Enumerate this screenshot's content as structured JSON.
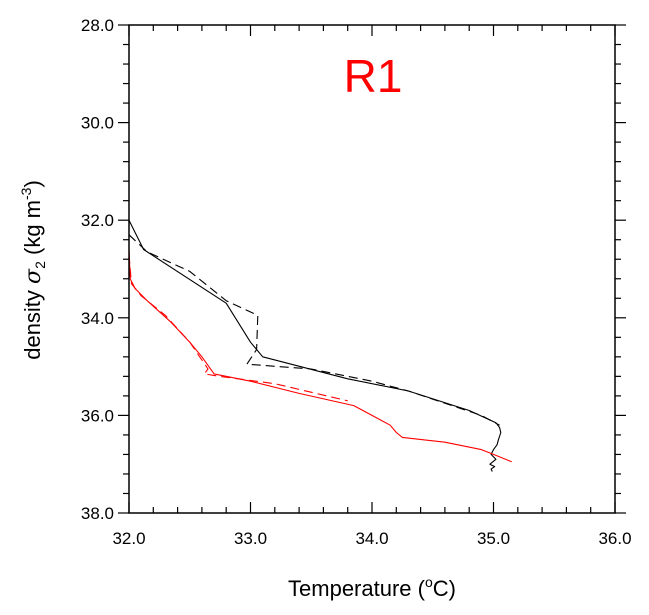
{
  "chart_data": {
    "type": "line",
    "panel_label": "R1",
    "panel_label_color": "#ff0000",
    "xlabel": {
      "prefix": "Temperature (",
      "sup": "o",
      "suffix": "C)"
    },
    "ylabel": {
      "prefix": "density ",
      "sigma": "σ",
      "sub": "2",
      "unit_open": " (kg m",
      "sup": "-3",
      "unit_close": ")"
    },
    "xlim": [
      32.0,
      36.0
    ],
    "ylim": [
      38.0,
      28.0
    ],
    "y_inverted": true,
    "x_ticks": [
      "32.0",
      "33.0",
      "34.0",
      "35.0",
      "36.0"
    ],
    "y_ticks": [
      "28.0",
      "30.0",
      "32.0",
      "34.0",
      "36.0",
      "38.0"
    ],
    "grid": false,
    "series": [
      {
        "color": "#000000",
        "dash": "solid",
        "x": [
          32.0,
          32.12,
          32.8,
          33.0,
          33.1,
          33.8,
          34.3,
          34.8,
          35.02,
          35.05,
          35.06,
          35.04,
          35.03,
          35.0,
          34.98,
          35.02,
          34.97,
          35.01,
          34.98,
          34.99
        ],
        "y": [
          32.0,
          32.6,
          33.7,
          34.5,
          34.8,
          35.25,
          35.5,
          35.9,
          36.15,
          36.25,
          36.35,
          36.5,
          36.6,
          36.7,
          36.8,
          36.9,
          37.0,
          37.05,
          37.1,
          37.15
        ]
      },
      {
        "color": "#000000",
        "dash": "dashed",
        "x": [
          32.0,
          32.15,
          32.5,
          32.8,
          33.06,
          33.05,
          32.97,
          33.5,
          34.0,
          34.3,
          34.6,
          34.9,
          35.05
        ],
        "y": [
          32.3,
          32.65,
          33.05,
          33.65,
          33.95,
          34.65,
          34.95,
          35.05,
          35.3,
          35.5,
          35.75,
          36.0,
          36.2
        ]
      },
      {
        "color": "#ff0000",
        "dash": "solid",
        "x": [
          32.0,
          32.01,
          32.05,
          32.15,
          32.35,
          32.5,
          32.6,
          32.7,
          33.0,
          33.4,
          33.85,
          34.0,
          34.15,
          34.2,
          34.25,
          34.6,
          34.9,
          35.0,
          35.15
        ],
        "y": [
          32.6,
          33.2,
          33.4,
          33.65,
          34.1,
          34.5,
          34.8,
          35.15,
          35.3,
          35.55,
          35.8,
          36.0,
          36.2,
          36.35,
          36.45,
          36.55,
          36.7,
          36.8,
          36.95
        ]
      },
      {
        "color": "#ff0000",
        "dash": "dashed",
        "x": [
          32.0,
          32.02,
          32.1,
          32.3,
          32.5,
          32.65,
          32.62,
          32.75,
          33.2,
          33.8
        ],
        "y": [
          32.7,
          33.3,
          33.55,
          33.95,
          34.5,
          35.05,
          35.15,
          35.2,
          35.35,
          35.7
        ]
      }
    ]
  }
}
